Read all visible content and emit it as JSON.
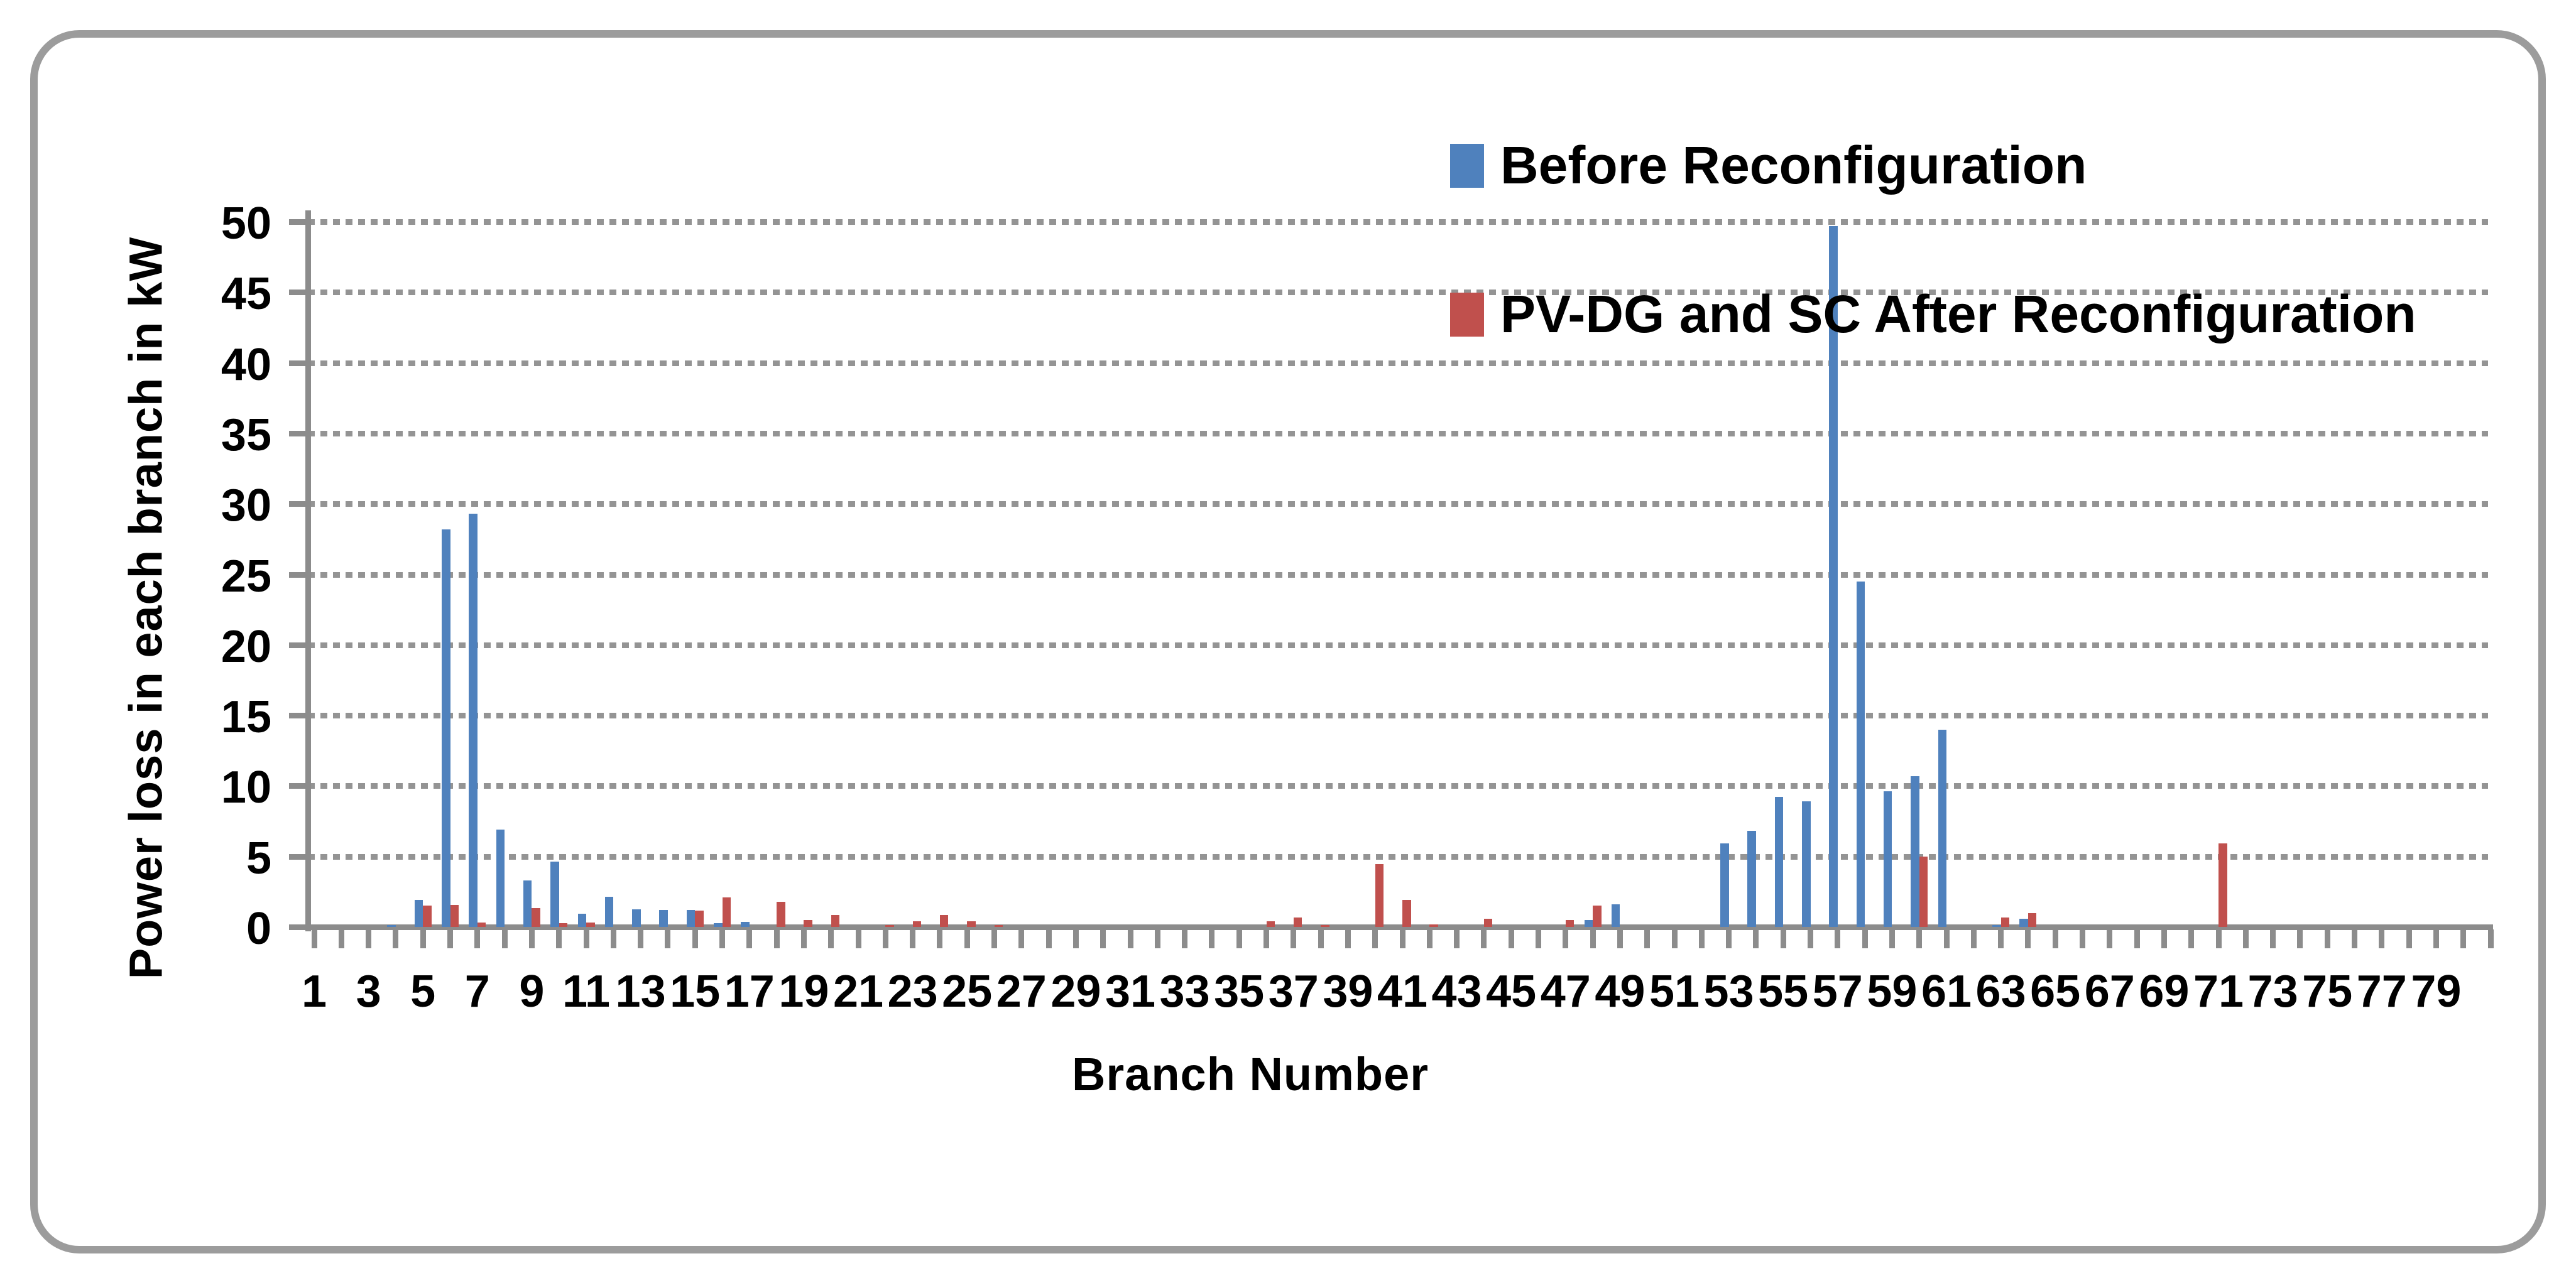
{
  "chart_data": {
    "type": "bar",
    "title": "",
    "xlabel": "Branch Number",
    "ylabel": "Power loss in each branch in kW",
    "ylim": [
      0,
      50
    ],
    "ytick_interval": 5,
    "ytick_labels": [
      "0",
      "5",
      "10",
      "15",
      "20",
      "25",
      "30",
      "35",
      "40",
      "45",
      "50"
    ],
    "xtick_labels": [
      "1",
      "3",
      "5",
      "7",
      "9",
      "11",
      "13",
      "15",
      "17",
      "19",
      "21",
      "23",
      "25",
      "27",
      "29",
      "31",
      "33",
      "35",
      "37",
      "39",
      "41",
      "43",
      "45",
      "47",
      "49",
      "51",
      "53",
      "55",
      "57",
      "59",
      "61",
      "63",
      "65",
      "67",
      "69",
      "71",
      "73",
      "75",
      "77",
      "79"
    ],
    "categories": [
      1,
      2,
      3,
      4,
      5,
      6,
      7,
      8,
      9,
      10,
      11,
      12,
      13,
      14,
      15,
      16,
      17,
      18,
      19,
      20,
      21,
      22,
      23,
      24,
      25,
      26,
      27,
      28,
      29,
      30,
      31,
      32,
      33,
      34,
      35,
      36,
      37,
      38,
      39,
      40,
      41,
      42,
      43,
      44,
      45,
      46,
      47,
      48,
      49,
      50,
      51,
      52,
      53,
      54,
      55,
      56,
      57,
      58,
      59,
      60,
      61,
      62,
      63,
      64,
      65,
      66,
      67,
      68,
      69,
      70,
      71,
      72,
      73,
      74,
      75,
      76,
      77,
      78,
      79,
      80
    ],
    "grid": "horizontal-dotted",
    "legend_position": "upper-right-inside",
    "series": [
      {
        "name": "Before Reconfiguration",
        "color": "#4F81BD",
        "values": [
          0,
          0,
          0,
          0.15,
          1.9,
          28.2,
          29.3,
          6.9,
          3.3,
          4.65,
          0.95,
          2.15,
          1.25,
          1.2,
          1.2,
          0.25,
          0.35,
          0,
          0,
          0,
          0,
          0,
          0,
          0,
          0,
          0,
          0,
          0,
          0,
          0,
          0,
          0,
          0,
          0,
          0,
          0,
          0,
          0,
          0,
          0,
          0,
          0,
          0,
          0,
          0,
          0,
          0,
          0.5,
          1.6,
          0,
          0,
          0,
          5.9,
          6.8,
          9.2,
          8.9,
          49.7,
          24.5,
          9.6,
          10.7,
          14,
          0,
          0.15,
          0.6,
          0,
          0,
          0,
          0,
          0,
          0,
          0,
          0,
          0,
          0,
          0,
          0,
          0,
          0,
          0,
          0
        ]
      },
      {
        "name": "PV-DG and SC After Reconfiguration",
        "color": "#C0504D",
        "values": [
          0,
          0,
          0,
          0,
          1.5,
          1.55,
          0.3,
          0,
          1.35,
          0.25,
          0.3,
          0,
          0,
          0,
          1.15,
          2.1,
          0,
          1.8,
          0.5,
          0.85,
          0,
          0.15,
          0.4,
          0.85,
          0.4,
          0.15,
          0,
          0,
          0,
          0,
          0,
          0,
          0,
          0,
          0,
          0.4,
          0.65,
          0.13,
          0,
          4.45,
          1.9,
          0.16,
          0,
          0.6,
          0,
          0,
          0.5,
          1.5,
          0,
          0,
          0,
          0,
          0,
          0,
          0,
          0,
          0,
          0,
          0,
          5.0,
          0,
          0,
          0.65,
          1.0,
          0,
          0,
          0,
          0,
          0,
          0,
          5.9,
          0,
          0,
          0,
          0,
          0,
          0,
          0,
          0,
          0
        ]
      }
    ],
    "colors": {
      "axis": "#8c8c8c",
      "gridline": "#949494",
      "frame_border": "#9c9c9c",
      "text": "#000000"
    }
  }
}
